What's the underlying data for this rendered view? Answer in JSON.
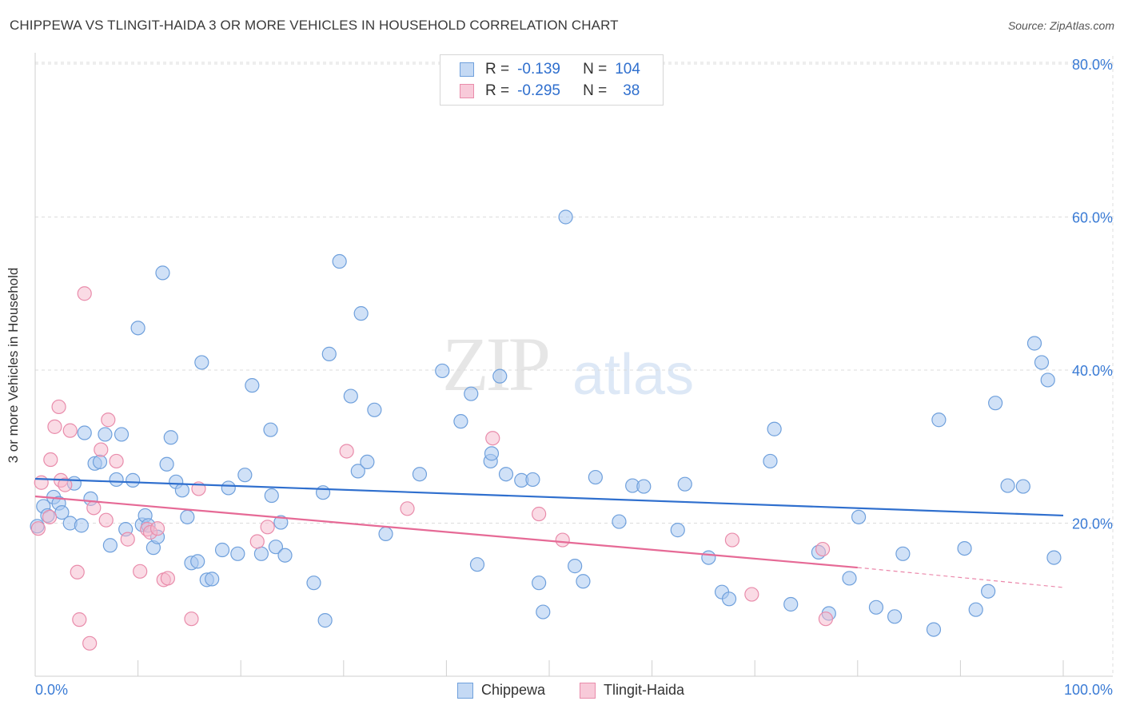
{
  "header": {
    "title": "CHIPPEWA VS TLINGIT-HAIDA 3 OR MORE VEHICLES IN HOUSEHOLD CORRELATION CHART",
    "source": "Source: ZipAtlas.com"
  },
  "watermark": {
    "zip": "ZIP",
    "atlas": "atlas"
  },
  "legend": {
    "rows": [
      {
        "r_label": "R =",
        "r_value": "-0.139",
        "n_label": "N =",
        "n_value": "104"
      },
      {
        "r_label": "R =",
        "r_value": "-0.295",
        "n_label": "N =",
        "n_value": "38"
      }
    ]
  },
  "bottom_legend": {
    "items": [
      "Chippewa",
      "Tlingit-Haida"
    ]
  },
  "colors": {
    "chippewa_fill": "#a9c8f0",
    "chippewa_stroke": "#6fa0dc",
    "chippewa_line": "#2f6fce",
    "tlingit_fill": "#f6b8cc",
    "tlingit_stroke": "#e98cab",
    "tlingit_line": "#e66a96",
    "tick_label": "#3a7bd5",
    "grid": "#dcdcdc"
  },
  "chart_data": {
    "type": "scatter",
    "title": "CHIPPEWA VS TLINGIT-HAIDA 3 OR MORE VEHICLES IN HOUSEHOLD CORRELATION CHART",
    "ylabel": "3 or more Vehicles in Household",
    "xlabel": "",
    "xlim": [
      0,
      100
    ],
    "ylim": [
      0,
      80
    ],
    "x_tick_labels": [
      "0.0%",
      "100.0%"
    ],
    "y_ticks": [
      20,
      40,
      60,
      80
    ],
    "y_tick_labels": [
      "20.0%",
      "40.0%",
      "60.0%",
      "80.0%"
    ],
    "grid": true,
    "legend_position": "top-center",
    "series": [
      {
        "name": "Chippewa",
        "r": -0.139,
        "n": 104,
        "trend": {
          "x": [
            0,
            100
          ],
          "y": [
            25.8,
            21.0
          ]
        },
        "points": [
          [
            0.2,
            19.6
          ],
          [
            0.8,
            22.2
          ],
          [
            1.2,
            21.0
          ],
          [
            1.8,
            23.4
          ],
          [
            2.3,
            22.6
          ],
          [
            2.6,
            21.4
          ],
          [
            3.4,
            20.0
          ],
          [
            3.8,
            25.2
          ],
          [
            4.5,
            19.7
          ],
          [
            4.8,
            31.8
          ],
          [
            5.4,
            23.2
          ],
          [
            5.8,
            27.8
          ],
          [
            6.3,
            28.0
          ],
          [
            6.8,
            31.6
          ],
          [
            7.3,
            17.1
          ],
          [
            7.9,
            25.7
          ],
          [
            8.4,
            31.6
          ],
          [
            8.8,
            19.2
          ],
          [
            9.5,
            25.6
          ],
          [
            10.0,
            45.5
          ],
          [
            10.4,
            19.8
          ],
          [
            10.7,
            21.0
          ],
          [
            11.0,
            19.7
          ],
          [
            11.5,
            16.8
          ],
          [
            11.9,
            18.2
          ],
          [
            12.4,
            52.7
          ],
          [
            12.8,
            27.7
          ],
          [
            13.2,
            31.2
          ],
          [
            13.7,
            25.4
          ],
          [
            14.3,
            24.3
          ],
          [
            14.8,
            20.8
          ],
          [
            15.2,
            14.8
          ],
          [
            15.8,
            15.0
          ],
          [
            16.2,
            41.0
          ],
          [
            16.7,
            12.6
          ],
          [
            17.2,
            12.7
          ],
          [
            18.2,
            16.5
          ],
          [
            18.8,
            24.6
          ],
          [
            19.7,
            16.0
          ],
          [
            20.4,
            26.3
          ],
          [
            21.1,
            38.0
          ],
          [
            22.0,
            16.0
          ],
          [
            22.9,
            32.2
          ],
          [
            23.0,
            23.6
          ],
          [
            23.4,
            16.9
          ],
          [
            23.9,
            20.1
          ],
          [
            24.3,
            15.8
          ],
          [
            27.1,
            12.2
          ],
          [
            28.0,
            24.0
          ],
          [
            28.2,
            7.3
          ],
          [
            28.6,
            42.1
          ],
          [
            29.6,
            54.2
          ],
          [
            30.7,
            36.6
          ],
          [
            31.4,
            26.8
          ],
          [
            31.7,
            47.4
          ],
          [
            32.3,
            28.0
          ],
          [
            33.0,
            34.8
          ],
          [
            34.1,
            18.6
          ],
          [
            37.4,
            26.4
          ],
          [
            39.6,
            39.9
          ],
          [
            41.4,
            33.3
          ],
          [
            42.4,
            36.9
          ],
          [
            43.0,
            14.6
          ],
          [
            44.3,
            28.1
          ],
          [
            44.4,
            29.1
          ],
          [
            45.2,
            39.2
          ],
          [
            45.8,
            26.4
          ],
          [
            47.3,
            25.6
          ],
          [
            48.4,
            25.7
          ],
          [
            49.0,
            12.2
          ],
          [
            49.4,
            8.4
          ],
          [
            51.6,
            60.0
          ],
          [
            52.5,
            14.4
          ],
          [
            53.3,
            12.4
          ],
          [
            54.5,
            26.0
          ],
          [
            56.8,
            20.2
          ],
          [
            58.1,
            24.9
          ],
          [
            59.2,
            24.8
          ],
          [
            62.5,
            19.1
          ],
          [
            63.2,
            25.1
          ],
          [
            65.5,
            15.5
          ],
          [
            66.8,
            11.0
          ],
          [
            67.5,
            10.1
          ],
          [
            71.5,
            28.1
          ],
          [
            71.9,
            32.3
          ],
          [
            73.5,
            9.4
          ],
          [
            76.2,
            16.2
          ],
          [
            77.2,
            8.2
          ],
          [
            79.2,
            12.8
          ],
          [
            80.1,
            20.8
          ],
          [
            81.8,
            9.0
          ],
          [
            83.6,
            7.8
          ],
          [
            84.4,
            16.0
          ],
          [
            87.4,
            6.1
          ],
          [
            87.9,
            33.5
          ],
          [
            90.4,
            16.7
          ],
          [
            91.5,
            8.7
          ],
          [
            92.7,
            11.1
          ],
          [
            93.4,
            35.7
          ],
          [
            94.6,
            24.9
          ],
          [
            96.1,
            24.8
          ],
          [
            97.2,
            43.5
          ],
          [
            97.9,
            41.0
          ],
          [
            98.5,
            38.7
          ],
          [
            99.1,
            15.5
          ]
        ]
      },
      {
        "name": "Tlingit-Haida",
        "r": -0.295,
        "n": 38,
        "trend": {
          "x": [
            0,
            80
          ],
          "y": [
            23.5,
            14.2
          ]
        },
        "trend_extended": {
          "x": [
            80,
            100
          ],
          "y": [
            14.2,
            11.6
          ]
        },
        "points": [
          [
            0.3,
            19.3
          ],
          [
            0.6,
            25.3
          ],
          [
            1.4,
            20.8
          ],
          [
            1.5,
            28.3
          ],
          [
            1.9,
            32.6
          ],
          [
            2.3,
            35.2
          ],
          [
            2.5,
            25.6
          ],
          [
            2.9,
            25.0
          ],
          [
            3.4,
            32.1
          ],
          [
            4.1,
            13.6
          ],
          [
            4.3,
            7.4
          ],
          [
            4.8,
            50.0
          ],
          [
            5.3,
            4.3
          ],
          [
            5.7,
            22.0
          ],
          [
            6.4,
            29.6
          ],
          [
            6.9,
            20.4
          ],
          [
            7.1,
            33.5
          ],
          [
            7.9,
            28.1
          ],
          [
            9.0,
            17.9
          ],
          [
            10.2,
            13.7
          ],
          [
            10.9,
            19.2
          ],
          [
            11.2,
            18.8
          ],
          [
            11.9,
            19.3
          ],
          [
            12.5,
            12.6
          ],
          [
            12.9,
            12.8
          ],
          [
            15.2,
            7.5
          ],
          [
            15.9,
            24.5
          ],
          [
            21.6,
            17.6
          ],
          [
            22.6,
            19.5
          ],
          [
            30.3,
            29.4
          ],
          [
            36.2,
            21.9
          ],
          [
            44.5,
            31.1
          ],
          [
            49.0,
            21.2
          ],
          [
            51.3,
            17.8
          ],
          [
            67.8,
            17.8
          ],
          [
            69.7,
            10.7
          ],
          [
            76.6,
            16.6
          ],
          [
            76.9,
            7.5
          ]
        ]
      }
    ]
  }
}
